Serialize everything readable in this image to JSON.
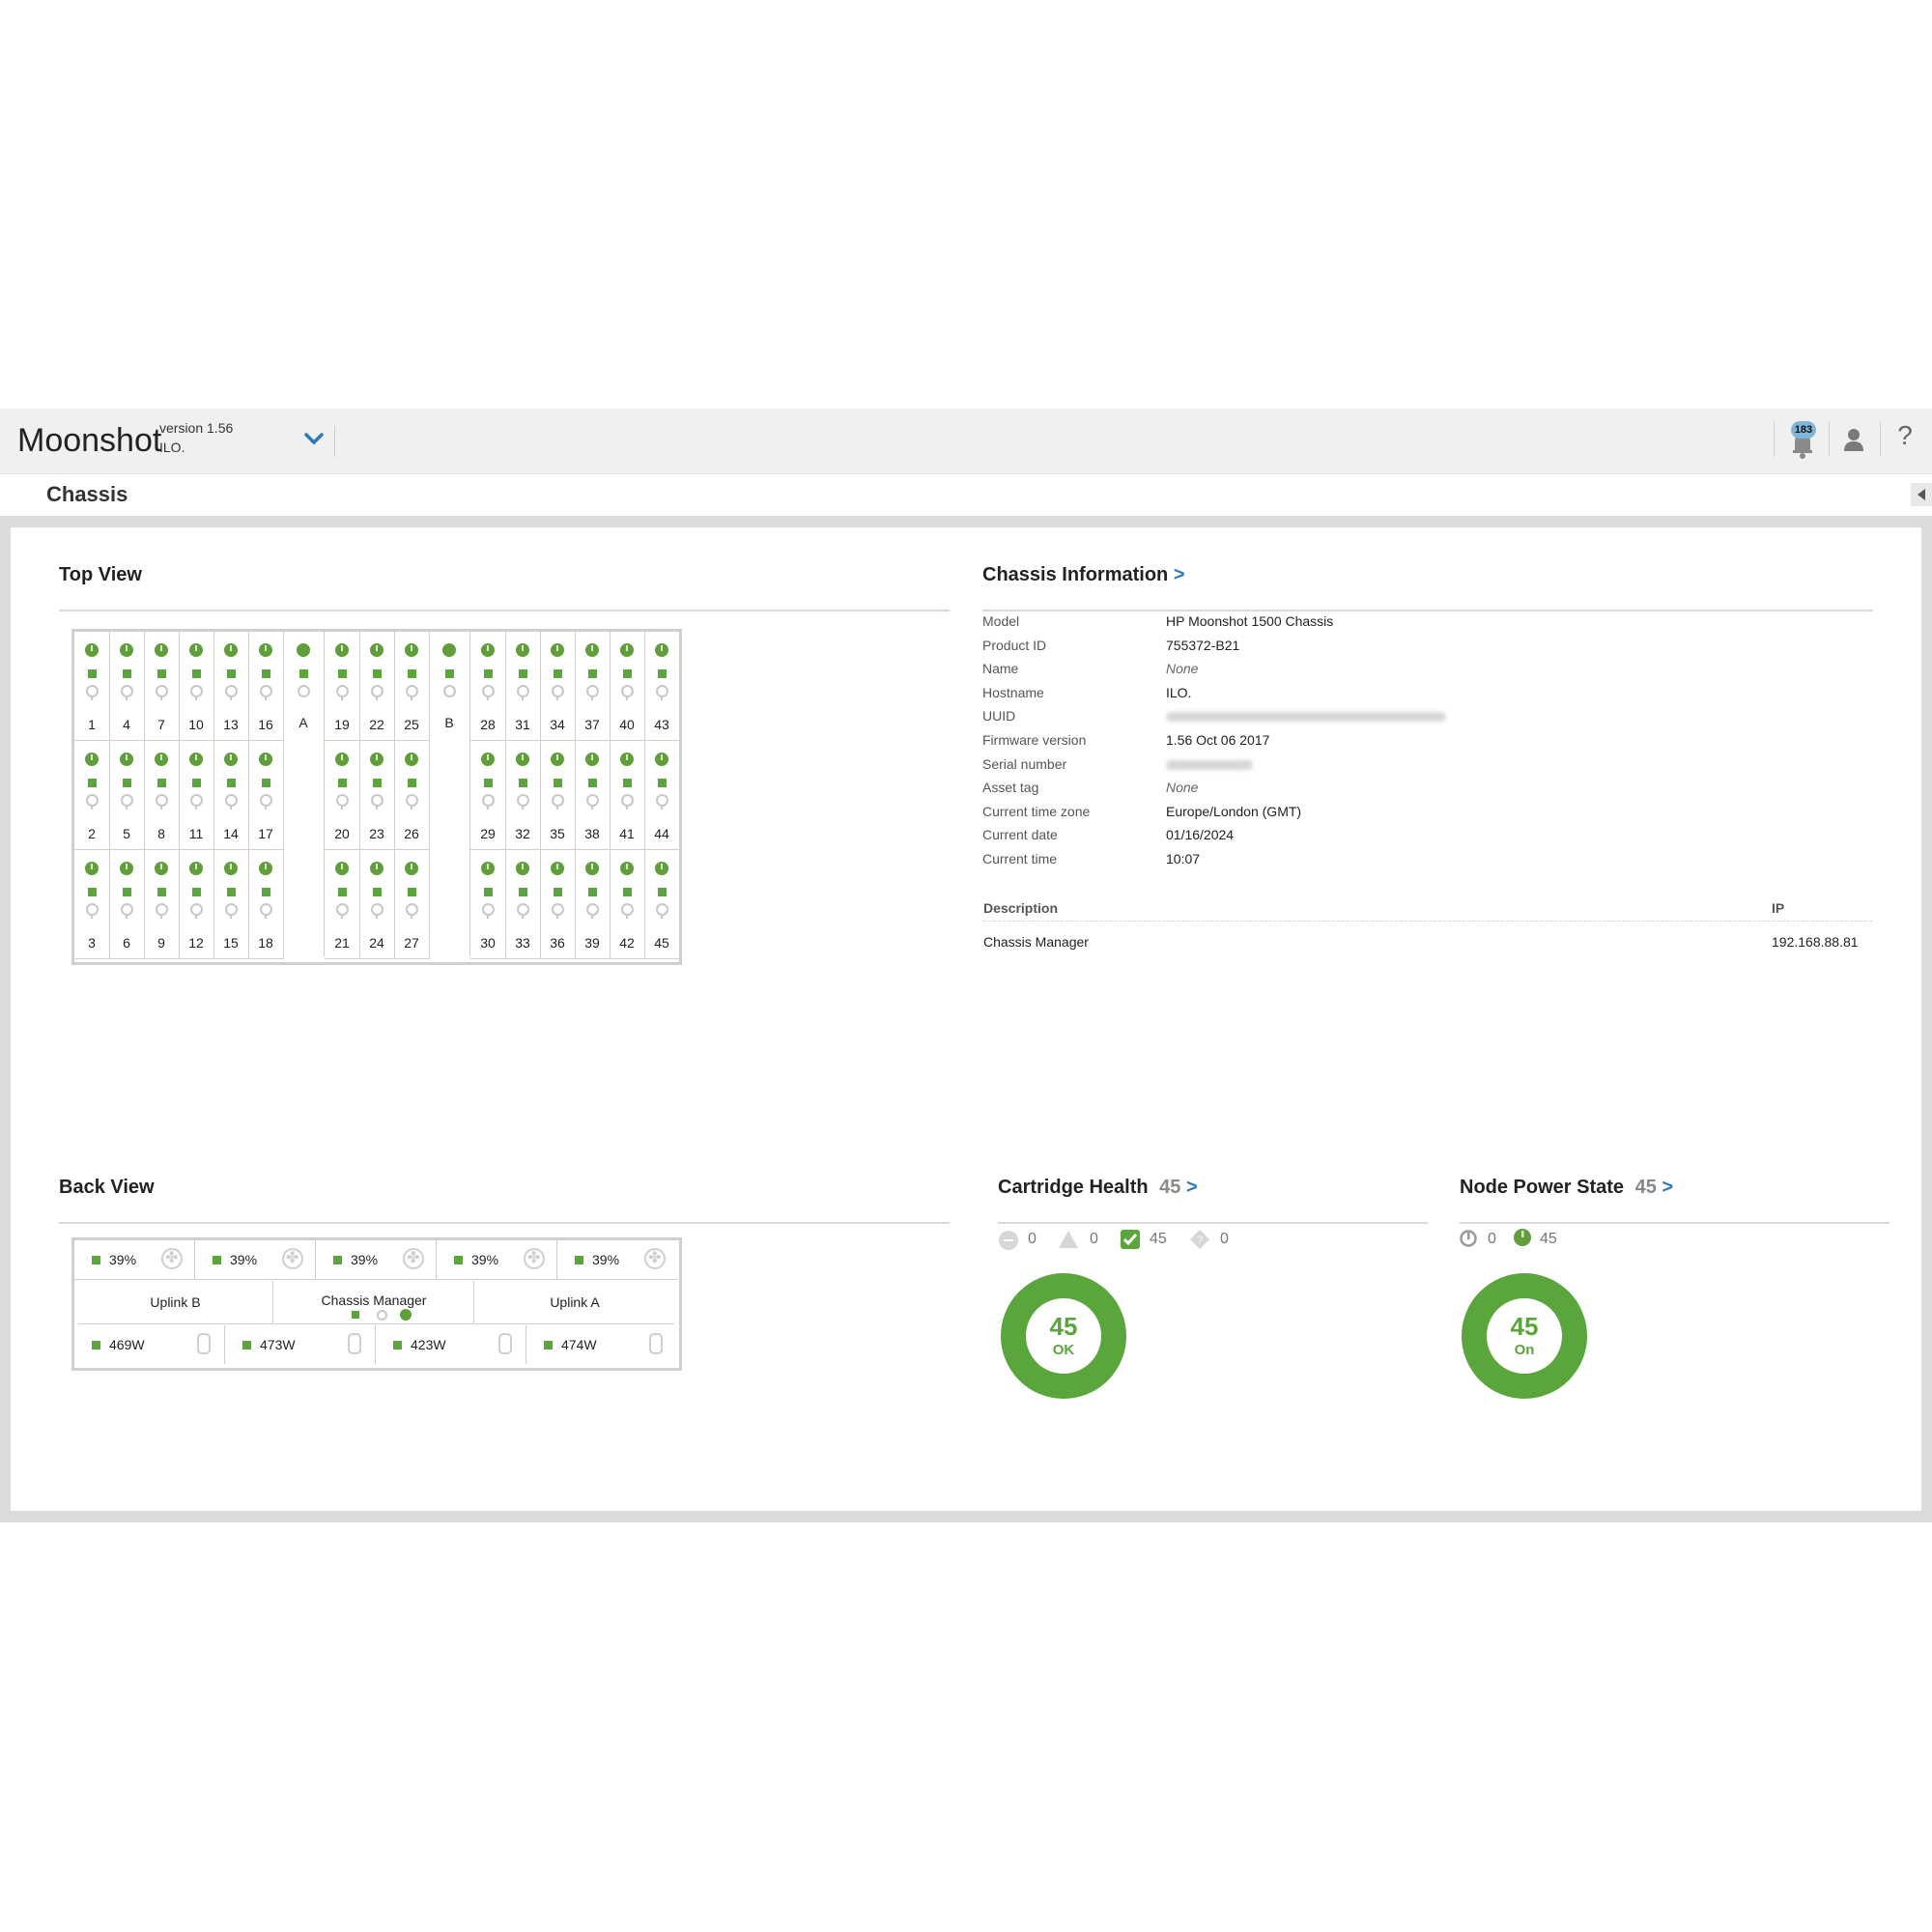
{
  "header": {
    "app_title": "Moonshot",
    "version": "version 1.56",
    "host": "ILO.",
    "notification_count": "183"
  },
  "page": {
    "title": "Chassis"
  },
  "top_view": {
    "title": "Top View",
    "columns": [
      {
        "type": "cart",
        "nums": [
          "1",
          "2",
          "3"
        ]
      },
      {
        "type": "cart",
        "nums": [
          "4",
          "5",
          "6"
        ]
      },
      {
        "type": "cart",
        "nums": [
          "7",
          "8",
          "9"
        ]
      },
      {
        "type": "cart",
        "nums": [
          "10",
          "11",
          "12"
        ]
      },
      {
        "type": "cart",
        "nums": [
          "13",
          "14",
          "15"
        ]
      },
      {
        "type": "cart",
        "nums": [
          "16",
          "17",
          "18"
        ]
      },
      {
        "type": "switch",
        "label": "A"
      },
      {
        "type": "cart",
        "nums": [
          "19",
          "20",
          "21"
        ]
      },
      {
        "type": "cart",
        "nums": [
          "22",
          "23",
          "24"
        ]
      },
      {
        "type": "cart",
        "nums": [
          "25",
          "26",
          "27"
        ]
      },
      {
        "type": "switch",
        "label": "B"
      },
      {
        "type": "cart",
        "nums": [
          "28",
          "29",
          "30"
        ]
      },
      {
        "type": "cart",
        "nums": [
          "31",
          "32",
          "33"
        ]
      },
      {
        "type": "cart",
        "nums": [
          "34",
          "35",
          "36"
        ]
      },
      {
        "type": "cart",
        "nums": [
          "37",
          "38",
          "39"
        ]
      },
      {
        "type": "cart",
        "nums": [
          "40",
          "41",
          "42"
        ]
      },
      {
        "type": "cart",
        "nums": [
          "43",
          "44",
          "45"
        ]
      }
    ]
  },
  "chassis_info": {
    "title": "Chassis Information",
    "arrow": ">",
    "rows": [
      {
        "label": "Model",
        "value": "HP Moonshot 1500 Chassis"
      },
      {
        "label": "Product ID",
        "value": "755372-B21"
      },
      {
        "label": "Name",
        "value": "None",
        "italic": true
      },
      {
        "label": "Hostname",
        "value": "ILO."
      },
      {
        "label": "UUID",
        "value": "",
        "blurred": true
      },
      {
        "label": "Firmware version",
        "value": "1.56 Oct 06 2017"
      },
      {
        "label": "Serial number",
        "value": "",
        "blurred": true
      },
      {
        "label": "Asset tag",
        "value": "None",
        "italic": true
      },
      {
        "label": "Current time zone",
        "value": "Europe/London (GMT)"
      },
      {
        "label": "Current date",
        "value": "01/16/2024"
      },
      {
        "label": "Current time",
        "value": "10:07"
      }
    ],
    "table_headers": {
      "description": "Description",
      "ip": "IP"
    },
    "table_rows": [
      {
        "description": "Chassis Manager",
        "ip": "192.168.88.81"
      }
    ]
  },
  "back_view": {
    "title": "Back View",
    "fans": [
      "39%",
      "39%",
      "39%",
      "39%",
      "39%"
    ],
    "uplink_b": "Uplink B",
    "chassis_manager": "Chassis Manager",
    "uplink_a": "Uplink A",
    "power_supplies": [
      "469W",
      "473W",
      "423W",
      "474W"
    ]
  },
  "cartridge_health": {
    "title": "Cartridge Health",
    "count": "45",
    "arrow": ">",
    "stats": {
      "disabled": "0",
      "warning": "0",
      "ok": "45",
      "unknown": "0"
    },
    "donut_value": "45",
    "donut_label": "OK",
    "colors": {
      "ok": "#5aa63c"
    }
  },
  "node_power": {
    "title": "Node Power State",
    "count": "45",
    "arrow": ">",
    "stats": {
      "off": "0",
      "on": "45"
    },
    "donut_value": "45",
    "donut_label": "On",
    "colors": {
      "on": "#5aa63c"
    }
  }
}
